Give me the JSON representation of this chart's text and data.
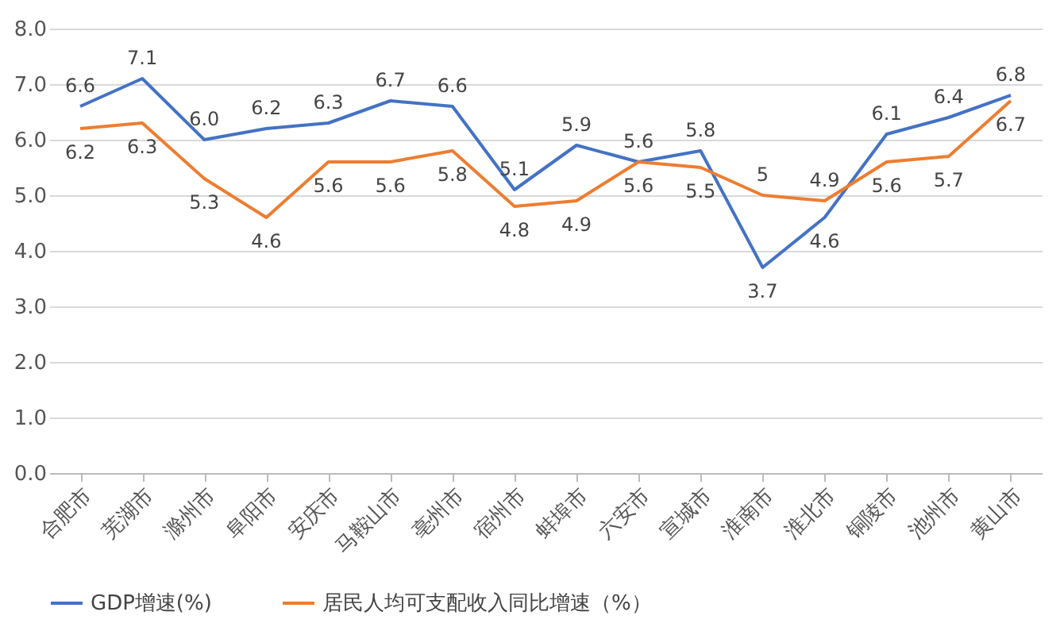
{
  "chart_data": {
    "type": "line",
    "categories": [
      "合肥市",
      "芜湖市",
      "滁州市",
      "阜阳市",
      "安庆市",
      "马鞍山市",
      "亳州市",
      "宿州市",
      "蚌埠市",
      "六安市",
      "宣城市",
      "淮南市",
      "淮北市",
      "铜陵市",
      "池州市",
      "黄山市"
    ],
    "series": [
      {
        "name": "GDP增速(%)",
        "color": "#4472c4",
        "values": [
          6.6,
          7.1,
          6.0,
          6.2,
          6.3,
          6.7,
          6.6,
          5.1,
          5.9,
          5.6,
          5.8,
          3.7,
          4.6,
          6.1,
          6.4,
          6.8
        ],
        "value_labels": [
          "6.6",
          "7.1",
          "6.0",
          "6.2",
          "6.3",
          "6.7",
          "6.6",
          "5.1",
          "5.9",
          "5.6",
          "5.8",
          "3.7",
          "4.6",
          "6.1",
          "6.4",
          "6.8"
        ]
      },
      {
        "name": "居民人均可支配收入同比增速（%）",
        "color": "#ed7d31",
        "values": [
          6.2,
          6.3,
          5.3,
          4.6,
          5.6,
          5.6,
          5.8,
          4.8,
          4.9,
          5.6,
          5.5,
          5,
          4.9,
          5.6,
          5.7,
          6.7
        ],
        "value_labels": [
          "6.2",
          "6.3",
          "5.3",
          "4.6",
          "5.6",
          "5.6",
          "5.8",
          "4.8",
          "4.9",
          "5.6",
          "5.5",
          "5",
          "4.9",
          "5.6",
          "5.7",
          "6.7"
        ]
      }
    ],
    "ylim": [
      0,
      8
    ],
    "yticks": [
      {
        "value": 0,
        "label": "0.0"
      },
      {
        "value": 1,
        "label": "1.0"
      },
      {
        "value": 2,
        "label": "2.0"
      },
      {
        "value": 3,
        "label": "3.0"
      },
      {
        "value": 4,
        "label": "4.0"
      },
      {
        "value": 5,
        "label": "5.0"
      },
      {
        "value": 6,
        "label": "6.0"
      },
      {
        "value": 7,
        "label": "7.0"
      },
      {
        "value": 8,
        "label": "8.0"
      }
    ],
    "grid": "y",
    "legend": "bottom",
    "marker": "none",
    "line_style": "solid"
  }
}
